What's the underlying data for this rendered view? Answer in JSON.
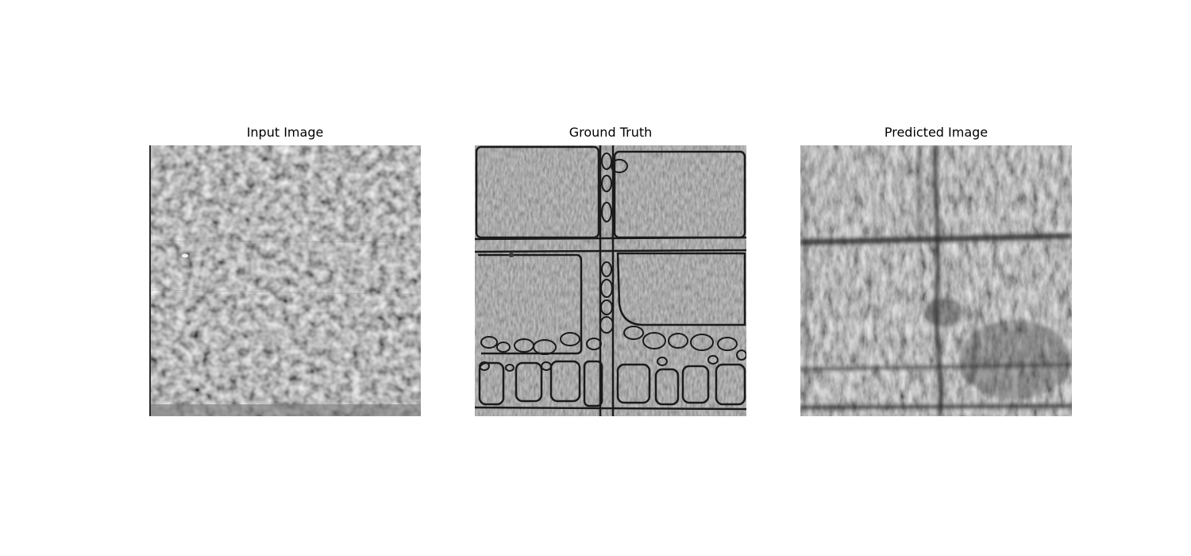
{
  "figure": {
    "panels": [
      {
        "title": "Input Image",
        "image_icon": "grainy-grayscale-texture-image",
        "base_color": "#808080"
      },
      {
        "title": "Ground Truth",
        "image_icon": "segmented-grayscale-texture-with-dark-boundaries-image",
        "base_color": "#8a8a8a"
      },
      {
        "title": "Predicted Image",
        "image_icon": "blurred-grayscale-prediction-image",
        "base_color": "#7e7e7e"
      }
    ]
  }
}
